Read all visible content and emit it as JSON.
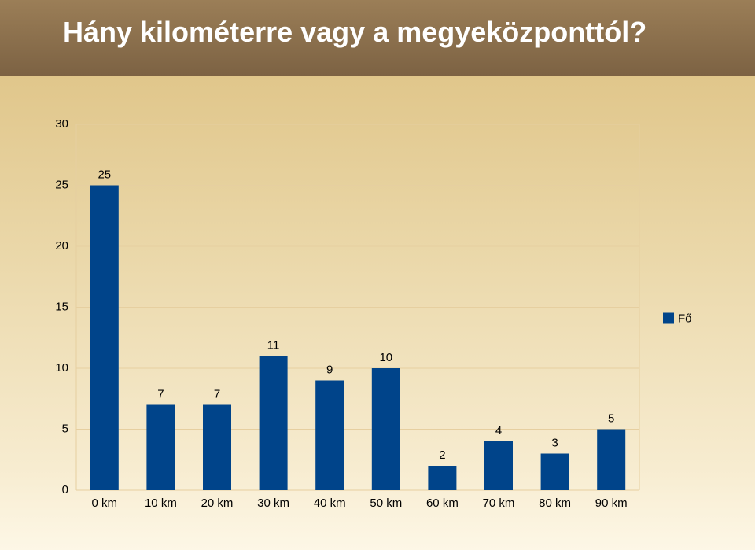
{
  "chart_data": {
    "type": "bar",
    "title": "Hány kilométerre vagy a megyeközponttól?",
    "categories": [
      "0 km",
      "10 km",
      "20 km",
      "30 km",
      "40 km",
      "50 km",
      "60 km",
      "70 km",
      "80 km",
      "90 km"
    ],
    "series": [
      {
        "name": "Fő",
        "color": "#00448a",
        "values": [
          25,
          7,
          7,
          11,
          9,
          10,
          2,
          4,
          3,
          5
        ]
      }
    ],
    "ylim": [
      0,
      30
    ],
    "yticks": [
      0,
      5,
      10,
      15,
      20,
      25,
      30
    ],
    "grid": true,
    "legend": "right",
    "data_labels": true
  }
}
